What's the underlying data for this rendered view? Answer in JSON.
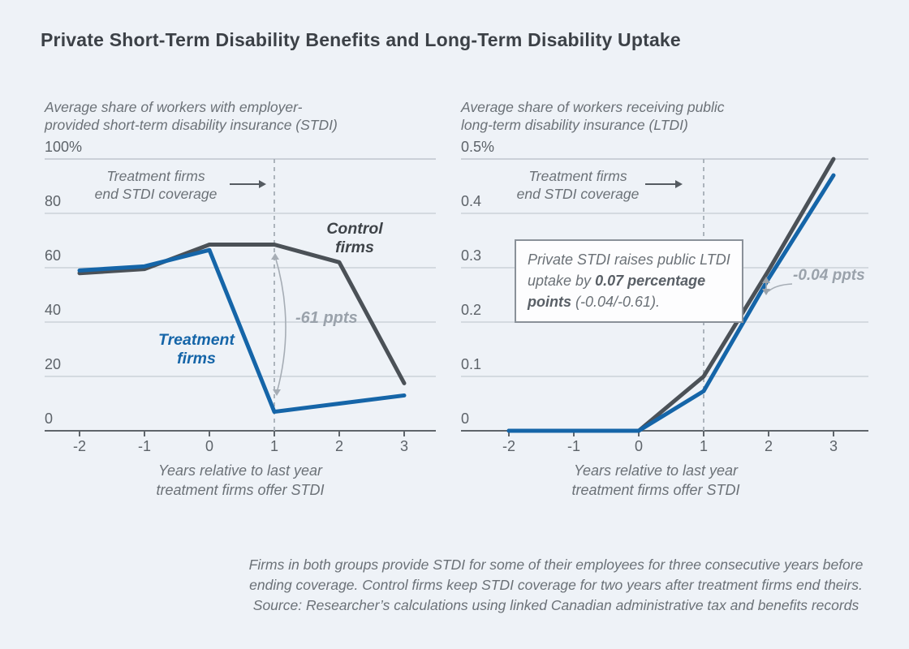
{
  "page": {
    "title": "Private Short-Term Disability Benefits and Long-Term Disability Uptake",
    "background": "#eef2f7",
    "accent_blue": "#1565a8",
    "accent_dark": "#4b5157",
    "gridline_color": "#c5cbd3",
    "footer": "Firms in both groups provide STDI for some of their employees for three consecutive years before\nending coverage. Control firms keep STDI coverage for two years after treatment firms end theirs.\nSource: Researcher’s calculations using linked Canadian administrative tax and benefits records"
  },
  "chart_data": [
    {
      "type": "line",
      "subtitle": "Average share of workers with employer-\nprovided short-term disability insurance (STDI)",
      "x": [
        -2,
        -1,
        0,
        1,
        2,
        3
      ],
      "series": [
        {
          "name": "Control firms",
          "color": "#4b5157",
          "values": [
            58,
            59.5,
            68.5,
            68.5,
            62,
            17.5
          ]
        },
        {
          "name": "Treatment firms",
          "color": "#1565a8",
          "values": [
            59,
            60.5,
            66.5,
            7,
            10,
            13
          ]
        }
      ],
      "ylim": [
        0,
        100
      ],
      "yticks": [
        100,
        80,
        60,
        40,
        20,
        0
      ],
      "ytick_labels": [
        "100%",
        "80",
        "60",
        "40",
        "20",
        "0"
      ],
      "xtick_labels": [
        "-2",
        "-1",
        "0",
        "1",
        "2",
        "3"
      ],
      "xlabel": "Years relative to last year\ntreatment firms offer STDI",
      "grid": true,
      "legend_position": "inline",
      "annotations": {
        "event_note": "Treatment firms\nend STDI coverage",
        "event_x": 1,
        "control_label": "Control\nfirms",
        "treatment_label": "Treatment\nfirms",
        "gap_label": "-61 ppts"
      }
    },
    {
      "type": "line",
      "subtitle": "Average share of workers receiving public\nlong-term disability insurance (LTDI)",
      "x": [
        -2,
        -1,
        0,
        1,
        2,
        3
      ],
      "series": [
        {
          "name": "Control firms",
          "color": "#4b5157",
          "values": [
            0,
            0,
            0,
            0.1,
            0.295,
            0.5
          ]
        },
        {
          "name": "Treatment firms",
          "color": "#1565a8",
          "values": [
            0,
            0,
            0,
            0.073,
            0.28,
            0.47
          ]
        }
      ],
      "ylim": [
        0,
        0.5
      ],
      "yticks": [
        0.5,
        0.4,
        0.3,
        0.2,
        0.1,
        0
      ],
      "ytick_labels": [
        "0.5%",
        "0.4",
        "0.3",
        "0.2",
        "0.1",
        "0"
      ],
      "xtick_labels": [
        "-2",
        "-1",
        "0",
        "1",
        "2",
        "3"
      ],
      "xlabel": "Years relative to last year\ntreatment firms offer STDI",
      "grid": true,
      "legend_position": "inline",
      "annotations": {
        "event_note": "Treatment firms\nend STDI coverage",
        "event_x": 1,
        "gap_label": "-0.04 ppts",
        "callout": {
          "pre": "Private STDI raises public LTDI uptake by ",
          "bold": "0.07 percentage points",
          "post": " (-0.04/-0.61)."
        }
      }
    }
  ]
}
